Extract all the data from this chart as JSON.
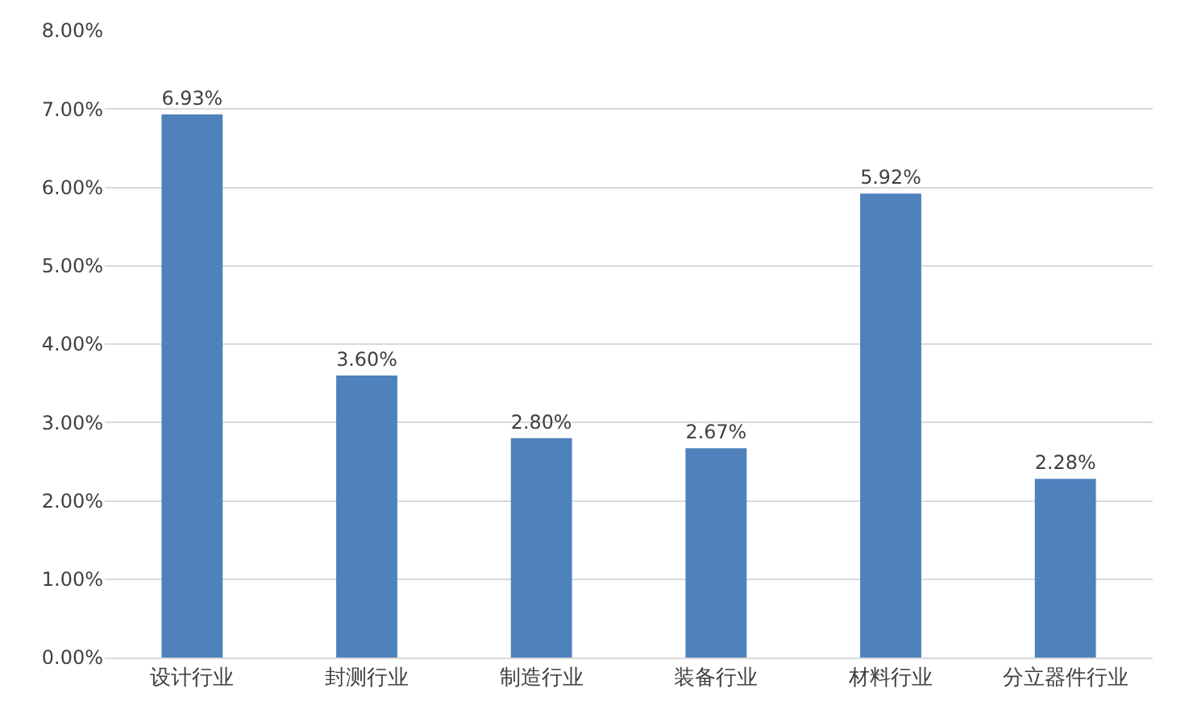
{
  "chart_data": {
    "type": "bar",
    "categories": [
      "设计行业",
      "封测行业",
      "制造行业",
      "装备行业",
      "材料行业",
      "分立器件行业"
    ],
    "values": [
      6.93,
      3.6,
      2.8,
      2.67,
      5.92,
      2.28
    ],
    "value_labels": [
      "6.93%",
      "3.60%",
      "2.80%",
      "2.67%",
      "5.92%",
      "2.28%"
    ],
    "color": "#4f81bd",
    "ylim": [
      0,
      8
    ],
    "yticks": [
      {
        "value": 0,
        "label": "0.00%"
      },
      {
        "value": 1,
        "label": "1.00%"
      },
      {
        "value": 2,
        "label": "2.00%"
      },
      {
        "value": 3,
        "label": "3.00%"
      },
      {
        "value": 4,
        "label": "4.00%"
      },
      {
        "value": 5,
        "label": "5.00%"
      },
      {
        "value": 6,
        "label": "6.00%"
      },
      {
        "value": 7,
        "label": "7.00%"
      },
      {
        "value": 8,
        "label": "8.00%"
      }
    ],
    "grid": "y"
  }
}
